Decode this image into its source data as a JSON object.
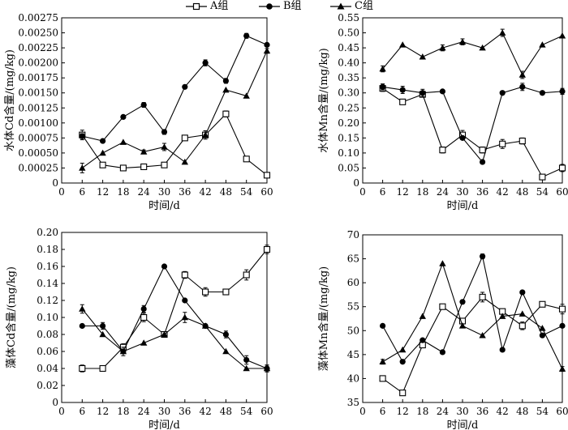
{
  "legend": [
    {
      "name": "A组",
      "marker": "square-open"
    },
    {
      "name": "B组",
      "marker": "circle-filled"
    },
    {
      "name": "C组",
      "marker": "triangle-filled"
    }
  ],
  "chart_data": [
    {
      "type": "line",
      "panel": "top-left",
      "xlabel": "时间/d",
      "ylabel": "水体Cd含量/(mg/kg)",
      "xlim": [
        0,
        60
      ],
      "xticks": [
        0,
        6,
        12,
        18,
        24,
        30,
        36,
        42,
        48,
        54,
        60
      ],
      "ylim": [
        0,
        0.00275
      ],
      "yticks": [
        "0",
        "0.00025",
        "0.00050",
        "0.00075",
        "0.00100",
        "0.00125",
        "0.00150",
        "0.00175",
        "0.00200",
        "0.00225",
        "0.00250",
        "0.00275"
      ],
      "x": [
        6,
        12,
        18,
        24,
        30,
        36,
        42,
        48,
        54,
        60
      ],
      "series": [
        {
          "name": "A组",
          "marker": "square-open",
          "values": [
            0.0008,
            0.0003,
            0.00025,
            0.00027,
            0.0003,
            0.00075,
            0.0008,
            0.00115,
            0.0004,
            0.00013
          ],
          "errors": [
            8e-05,
            0,
            0,
            3e-05,
            4e-05,
            0,
            0,
            5e-05,
            4e-05,
            0
          ]
        },
        {
          "name": "B组",
          "marker": "circle-filled",
          "values": [
            0.00078,
            0.0007,
            0.0011,
            0.0013,
            0.00085,
            0.0016,
            0.002,
            0.0017,
            0.00245,
            0.0023
          ],
          "errors": [
            4e-05,
            0,
            0,
            4e-05,
            4e-05,
            0,
            5e-05,
            4e-05,
            4e-05,
            0
          ]
        },
        {
          "name": "C组",
          "marker": "triangle-filled",
          "values": [
            0.00025,
            0.0005,
            0.00068,
            0.00052,
            0.0006,
            0.00035,
            0.0008,
            0.00155,
            0.00145,
            0.0022
          ],
          "errors": [
            8e-05,
            0,
            0,
            3e-05,
            6e-05,
            0,
            7e-05,
            0,
            0,
            4e-05
          ]
        }
      ]
    },
    {
      "type": "line",
      "panel": "top-right",
      "xlabel": "时间/d",
      "ylabel": "水体Mn含量/(mg/kg)",
      "xlim": [
        0,
        60
      ],
      "xticks": [
        0,
        6,
        12,
        18,
        24,
        30,
        36,
        42,
        48,
        54,
        60
      ],
      "ylim": [
        0,
        0.55
      ],
      "yticks": [
        "0",
        "0.05",
        "0.10",
        "0.15",
        "0.20",
        "0.25",
        "0.30",
        "0.35",
        "0.40",
        "0.45",
        "0.50",
        "0.55"
      ],
      "x": [
        6,
        12,
        18,
        24,
        30,
        36,
        42,
        48,
        54,
        60
      ],
      "series": [
        {
          "name": "A组",
          "marker": "square-open",
          "values": [
            0.315,
            0.27,
            0.295,
            0.11,
            0.16,
            0.11,
            0.13,
            0.14,
            0.02,
            0.05
          ],
          "errors": [
            0.01,
            0,
            0,
            0.01,
            0.015,
            0.01,
            0.015,
            0.01,
            0,
            0.012
          ]
        },
        {
          "name": "B组",
          "marker": "circle-filled",
          "values": [
            0.32,
            0.31,
            0.3,
            0.305,
            0.15,
            0.07,
            0.3,
            0.32,
            0.3,
            0.305
          ],
          "errors": [
            0.01,
            0.012,
            0.012,
            0,
            0,
            0,
            0,
            0.012,
            0,
            0.01
          ]
        },
        {
          "name": "C组",
          "marker": "triangle-filled",
          "values": [
            0.38,
            0.46,
            0.42,
            0.45,
            0.47,
            0.45,
            0.5,
            0.36,
            0.46,
            0.49
          ],
          "errors": [
            0.01,
            0,
            0,
            0.01,
            0.01,
            0,
            0.012,
            0.012,
            0,
            0
          ]
        }
      ]
    },
    {
      "type": "line",
      "panel": "bottom-left",
      "xlabel": "时间/d",
      "ylabel": "藻体Cd含量/(mg/kg)",
      "xlim": [
        0,
        60
      ],
      "xticks": [
        0,
        6,
        12,
        18,
        24,
        30,
        36,
        42,
        48,
        54,
        60
      ],
      "ylim": [
        0,
        0.2
      ],
      "yticks": [
        "0",
        "0.02",
        "0.04",
        "0.06",
        "0.08",
        "0.10",
        "0.12",
        "0.14",
        "0.16",
        "0.18",
        "0.20"
      ],
      "x": [
        6,
        12,
        18,
        24,
        30,
        36,
        42,
        48,
        54,
        60
      ],
      "series": [
        {
          "name": "A组",
          "marker": "square-open",
          "values": [
            0.04,
            0.04,
            0.065,
            0.1,
            0.08,
            0.15,
            0.13,
            0.13,
            0.15,
            0.18
          ],
          "errors": [
            0.004,
            0,
            0.004,
            0.005,
            0,
            0.004,
            0.005,
            0,
            0.006,
            0.005
          ]
        },
        {
          "name": "B组",
          "marker": "circle-filled",
          "values": [
            0.09,
            0.09,
            0.06,
            0.11,
            0.16,
            0.12,
            0.09,
            0.08,
            0.05,
            0.04
          ],
          "errors": [
            0,
            0.004,
            0,
            0.004,
            0,
            0,
            0,
            0.004,
            0.005,
            0.004
          ]
        },
        {
          "name": "C组",
          "marker": "triangle-filled",
          "values": [
            0.11,
            0.08,
            0.06,
            0.07,
            0.08,
            0.1,
            0.09,
            0.06,
            0.04,
            0.04
          ],
          "errors": [
            0.005,
            0,
            0.005,
            0,
            0,
            0.006,
            0,
            0,
            0,
            0.004
          ]
        }
      ]
    },
    {
      "type": "line",
      "panel": "bottom-right",
      "xlabel": "时间/d",
      "ylabel": "藻体Mn含量/(mg/kg)",
      "xlim": [
        0,
        60
      ],
      "xticks": [
        0,
        6,
        12,
        18,
        24,
        30,
        36,
        42,
        48,
        54,
        60
      ],
      "ylim": [
        35,
        70
      ],
      "yticks": [
        "35",
        "40",
        "45",
        "50",
        "55",
        "60",
        "65",
        "70"
      ],
      "x": [
        6,
        12,
        18,
        24,
        30,
        36,
        42,
        48,
        54,
        60
      ],
      "series": [
        {
          "name": "A组",
          "marker": "square-open",
          "values": [
            40,
            37,
            47,
            55,
            52,
            57,
            54,
            51,
            55.5,
            54.5
          ],
          "errors": [
            0,
            0.5,
            0.5,
            0,
            0.5,
            1,
            0.5,
            0.8,
            0,
            1
          ]
        },
        {
          "name": "B组",
          "marker": "circle-filled",
          "values": [
            51,
            43.5,
            48,
            45.5,
            56,
            65.5,
            46,
            58,
            49,
            51
          ],
          "errors": [
            0,
            0,
            0,
            0,
            0,
            0.5,
            0,
            0,
            0,
            0
          ]
        },
        {
          "name": "C组",
          "marker": "triangle-filled",
          "values": [
            43.5,
            46,
            53,
            64,
            51,
            49,
            53,
            53.5,
            50.5,
            42
          ],
          "errors": [
            0.5,
            0,
            0,
            0,
            0,
            0,
            0,
            0,
            0,
            0.5
          ]
        }
      ]
    }
  ]
}
